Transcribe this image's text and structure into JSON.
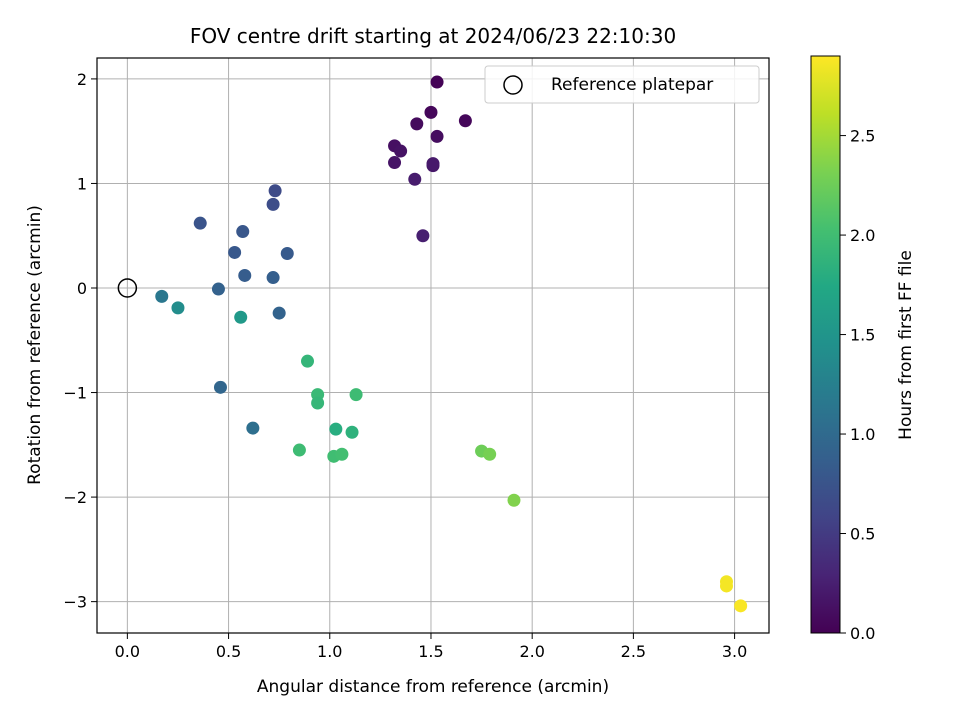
{
  "chart_data": {
    "type": "scatter",
    "title": "FOV centre drift starting at 2024/06/23 22:10:30",
    "xlabel": "Angular distance from reference (arcmin)",
    "ylabel": "Rotation from reference (arcmin)",
    "xlim": [
      -0.15,
      3.17
    ],
    "ylim": [
      -3.3,
      2.2
    ],
    "xticks": [
      0.0,
      0.5,
      1.0,
      1.5,
      2.0,
      2.5,
      3.0
    ],
    "xtick_labels": [
      "0.0",
      "0.5",
      "1.0",
      "1.5",
      "2.0",
      "2.5",
      "3.0"
    ],
    "yticks": [
      2,
      1,
      0,
      -1,
      -2,
      -3
    ],
    "ytick_labels": [
      "2",
      "1",
      "0",
      "−1",
      "−2",
      "−3"
    ],
    "grid": true,
    "legend": {
      "placement": "top-right",
      "entries": [
        {
          "label": "Reference platepar",
          "marker": "open-circle"
        }
      ]
    },
    "reference_point": {
      "x": 0.0,
      "y": 0.0
    },
    "colorbar": {
      "label": "Hours from first FF file",
      "range": [
        0.0,
        2.9
      ],
      "ticks": [
        0.0,
        0.5,
        1.0,
        1.5,
        2.0,
        2.5
      ],
      "tick_labels": [
        "0.0",
        "0.5",
        "1.0",
        "1.5",
        "2.0",
        "2.5"
      ],
      "colormap": "viridis"
    },
    "points": [
      {
        "x": 1.53,
        "y": 1.97,
        "hours": 0.02
      },
      {
        "x": 1.5,
        "y": 1.68,
        "hours": 0.05
      },
      {
        "x": 1.67,
        "y": 1.6,
        "hours": 0.05
      },
      {
        "x": 1.43,
        "y": 1.57,
        "hours": 0.08
      },
      {
        "x": 1.53,
        "y": 1.45,
        "hours": 0.1
      },
      {
        "x": 1.32,
        "y": 1.36,
        "hours": 0.12
      },
      {
        "x": 1.35,
        "y": 1.31,
        "hours": 0.14
      },
      {
        "x": 1.32,
        "y": 1.2,
        "hours": 0.16
      },
      {
        "x": 1.51,
        "y": 1.17,
        "hours": 0.18
      },
      {
        "x": 1.51,
        "y": 1.19,
        "hours": 0.2
      },
      {
        "x": 1.42,
        "y": 1.04,
        "hours": 0.22
      },
      {
        "x": 1.46,
        "y": 0.5,
        "hours": 0.25
      },
      {
        "x": 0.73,
        "y": 0.93,
        "hours": 0.65
      },
      {
        "x": 0.72,
        "y": 0.8,
        "hours": 0.68
      },
      {
        "x": 0.36,
        "y": 0.62,
        "hours": 0.75
      },
      {
        "x": 0.57,
        "y": 0.54,
        "hours": 0.78
      },
      {
        "x": 0.53,
        "y": 0.34,
        "hours": 0.8
      },
      {
        "x": 0.79,
        "y": 0.33,
        "hours": 0.82
      },
      {
        "x": 0.58,
        "y": 0.12,
        "hours": 0.85
      },
      {
        "x": 0.72,
        "y": 0.1,
        "hours": 0.87
      },
      {
        "x": 0.45,
        "y": -0.01,
        "hours": 0.9
      },
      {
        "x": 0.75,
        "y": -0.24,
        "hours": 0.92
      },
      {
        "x": 0.46,
        "y": -0.95,
        "hours": 0.95
      },
      {
        "x": 0.62,
        "y": -1.34,
        "hours": 1.05
      },
      {
        "x": 0.17,
        "y": -0.08,
        "hours": 1.15
      },
      {
        "x": 0.25,
        "y": -0.19,
        "hours": 1.4
      },
      {
        "x": 0.56,
        "y": -0.28,
        "hours": 1.55
      },
      {
        "x": 0.89,
        "y": -0.7,
        "hours": 1.9
      },
      {
        "x": 0.94,
        "y": -1.02,
        "hours": 1.95
      },
      {
        "x": 0.94,
        "y": -1.1,
        "hours": 1.92
      },
      {
        "x": 1.13,
        "y": -1.02,
        "hours": 1.98
      },
      {
        "x": 1.03,
        "y": -1.35,
        "hours": 1.8
      },
      {
        "x": 1.11,
        "y": -1.38,
        "hours": 1.85
      },
      {
        "x": 0.85,
        "y": -1.55,
        "hours": 1.98
      },
      {
        "x": 1.02,
        "y": -1.61,
        "hours": 2.0
      },
      {
        "x": 1.06,
        "y": -1.59,
        "hours": 2.02
      },
      {
        "x": 1.75,
        "y": -1.56,
        "hours": 2.25
      },
      {
        "x": 1.79,
        "y": -1.59,
        "hours": 2.3
      },
      {
        "x": 1.91,
        "y": -2.03,
        "hours": 2.35
      },
      {
        "x": 2.96,
        "y": -2.81,
        "hours": 2.85
      },
      {
        "x": 2.96,
        "y": -2.85,
        "hours": 2.86
      },
      {
        "x": 3.03,
        "y": -3.04,
        "hours": 2.88
      }
    ]
  }
}
